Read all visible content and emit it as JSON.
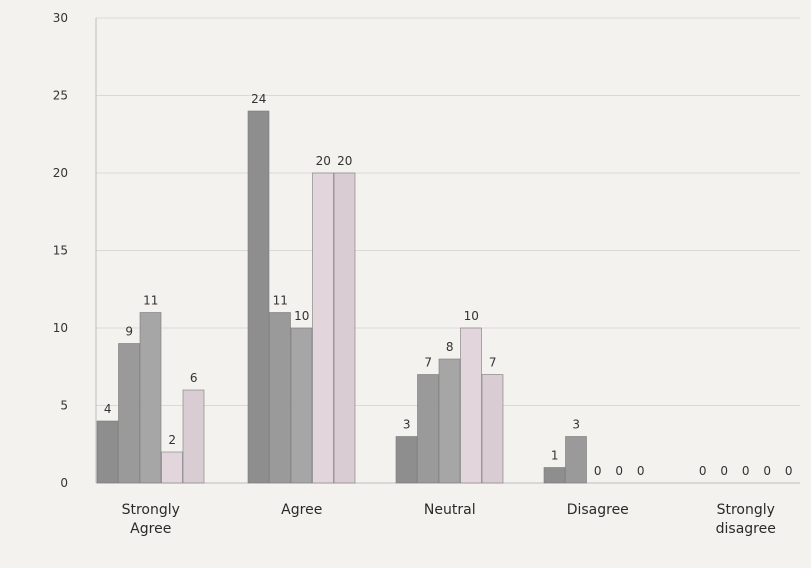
{
  "chart_data": {
    "type": "bar",
    "categories": [
      "Strongly Agree",
      "Agree",
      "Neutral",
      "Disagree",
      "Strongly disagree"
    ],
    "category_lines": [
      [
        "Strongly",
        "Agree"
      ],
      [
        "Agree"
      ],
      [
        "Neutral"
      ],
      [
        "Disagree"
      ],
      [
        "Strongly",
        "disagree"
      ]
    ],
    "series": [
      {
        "values": [
          4,
          24,
          3,
          1,
          0
        ],
        "color": "#8e8e8e"
      },
      {
        "values": [
          9,
          11,
          7,
          3,
          0
        ],
        "color": "#9a9a9a"
      },
      {
        "values": [
          11,
          10,
          8,
          0,
          0
        ],
        "color": "#a6a6a6"
      },
      {
        "values": [
          2,
          20,
          10,
          0,
          0
        ],
        "color": "#e2d6dc"
      },
      {
        "values": [
          6,
          20,
          7,
          0,
          0
        ],
        "color": "#d9cdd3"
      }
    ],
    "ylim": [
      0,
      30
    ],
    "yticks": [
      0,
      5,
      10,
      15,
      20,
      25,
      30
    ],
    "ytick_labels": [
      "0",
      "5",
      "10",
      "15",
      "20",
      "25",
      "30"
    ],
    "grid": true,
    "title": "",
    "xlabel": "",
    "ylabel": ""
  }
}
